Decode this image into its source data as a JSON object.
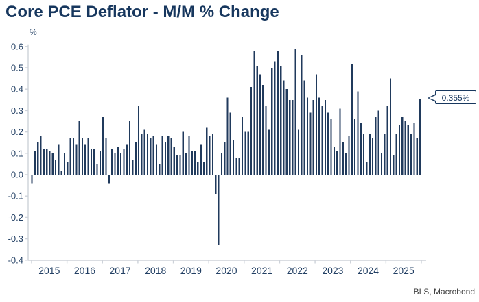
{
  "header": {
    "title": "Core PCE Deflator - M/M % Change"
  },
  "source": {
    "label": "BLS, Macrobond"
  },
  "colors": {
    "bar": "#203A5C",
    "title_navy": "#17375E",
    "axis_line": "#CDD2D9",
    "tick_text": "#234064",
    "source_text": "#3F3F3F",
    "callout_border": "#17375E"
  },
  "chart_data": {
    "type": "bar",
    "title": "Core PCE Deflator - M/M % Change",
    "unit_label": "%",
    "ylabel": "%",
    "xlabel": "",
    "ylim": [
      -0.4,
      0.6
    ],
    "grid": false,
    "legend_position": "none",
    "y_ticks": [
      0.6,
      0.5,
      0.4,
      0.3,
      0.2,
      0.1,
      0.0,
      -0.1,
      -0.2,
      -0.3,
      -0.4
    ],
    "x_tick_labels": [
      "2015",
      "2016",
      "2017",
      "2018",
      "2019",
      "2020",
      "2021",
      "2022",
      "2023",
      "2024",
      "2025"
    ],
    "frequency": "monthly",
    "last_value_label": "0.355%",
    "values": [
      -0.04,
      0.11,
      0.15,
      0.18,
      0.12,
      0.12,
      0.11,
      0.1,
      0.07,
      0.14,
      0.02,
      0.1,
      0.06,
      0.17,
      0.17,
      0.14,
      0.25,
      0.17,
      0.14,
      0.17,
      0.12,
      0.12,
      0.05,
      0.11,
      0.27,
      0.17,
      -0.04,
      0.12,
      0.1,
      0.13,
      0.1,
      0.12,
      0.14,
      0.25,
      0.07,
      0.15,
      0.32,
      0.19,
      0.21,
      0.19,
      0.17,
      0.18,
      0.14,
      0.05,
      0.18,
      0.15,
      0.18,
      0.17,
      0.13,
      0.09,
      0.09,
      0.2,
      0.1,
      0.18,
      0.11,
      0.11,
      0.06,
      0.14,
      0.06,
      0.22,
      0.18,
      0.19,
      -0.09,
      -0.33,
      0.1,
      0.15,
      0.36,
      0.29,
      0.16,
      0.08,
      0.08,
      0.27,
      0.2,
      0.2,
      0.41,
      0.58,
      0.51,
      0.47,
      0.42,
      0.32,
      0.21,
      0.5,
      0.53,
      0.58,
      0.51,
      0.44,
      0.4,
      0.35,
      0.35,
      0.59,
      0.21,
      0.56,
      0.44,
      0.36,
      0.29,
      0.35,
      0.47,
      0.36,
      0.32,
      0.35,
      0.29,
      0.26,
      0.13,
      0.11,
      0.31,
      0.15,
      0.1,
      0.18,
      0.52,
      0.26,
      0.39,
      0.24,
      0.19,
      0.06,
      0.19,
      0.17,
      0.27,
      0.3,
      0.1,
      0.19,
      0.32,
      0.45,
      0.09,
      0.19,
      0.23,
      0.27,
      0.25,
      0.23,
      0.19,
      0.24,
      0.17,
      0.355
    ]
  }
}
